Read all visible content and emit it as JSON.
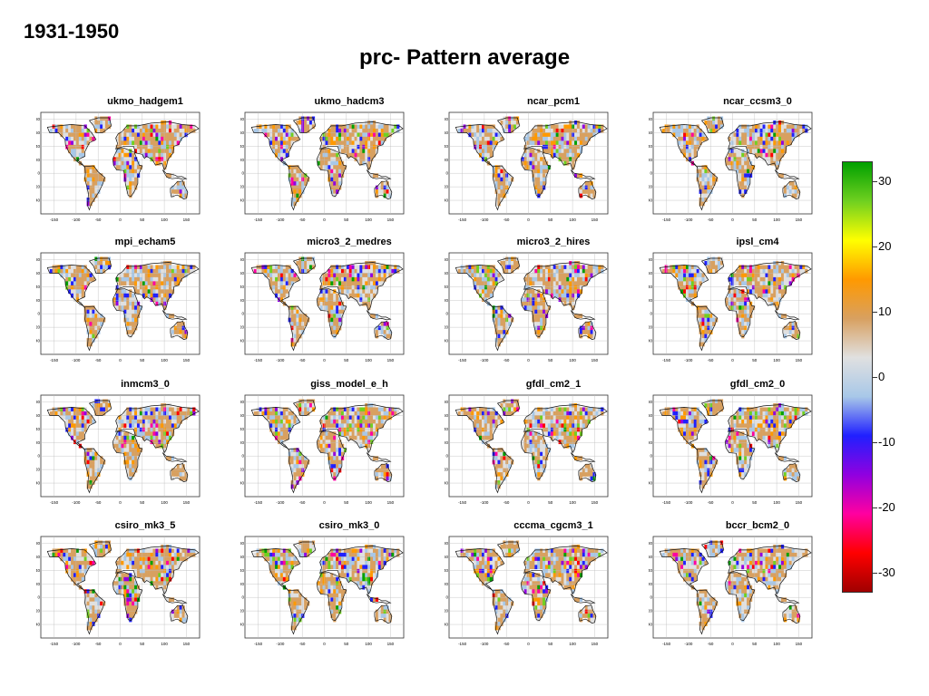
{
  "period": "1931-1950",
  "title": "prc- Pattern average",
  "chart_data": {
    "type": "heatmap",
    "title": "prc- Pattern average",
    "subtitle": "1931-1950",
    "panels": [
      "ukmo_hadgem1",
      "ukmo_hadcm3",
      "ncar_pcm1",
      "ncar_ccsm3_0",
      "mpi_echam5",
      "micro3_2_medres",
      "micro3_2_hires",
      "ipsl_cm4",
      "inmcm3_0",
      "giss_model_e_h",
      "gfdl_cm2_1",
      "gfdl_cm2_0",
      "csiro_mk3_5",
      "csiro_mk3_0",
      "cccma_cgcm3_1",
      "bccr_bcm2_0"
    ],
    "x_ticks": [
      "-150",
      "-100",
      "-50",
      "0",
      "50",
      "100",
      "150"
    ],
    "y_ticks": [
      "80",
      "60",
      "40",
      "20",
      "0",
      "-20",
      "-40"
    ],
    "xlim": [
      -180,
      180
    ],
    "ylim": [
      -60,
      90
    ],
    "grid": true,
    "colorbar": {
      "ticks": [
        "30",
        "20",
        "10",
        "0",
        "-10",
        "-20",
        "-30"
      ],
      "range": [
        -33,
        33
      ],
      "placement": "right",
      "colors": [
        "#00a000",
        "#70d020",
        "#ffff00",
        "#ff9900",
        "#d8a060",
        "#e0e0e0",
        "#a8c8e8",
        "#2020ff",
        "#9000e0",
        "#ff00a0",
        "#ff0000",
        "#a00000"
      ]
    }
  }
}
